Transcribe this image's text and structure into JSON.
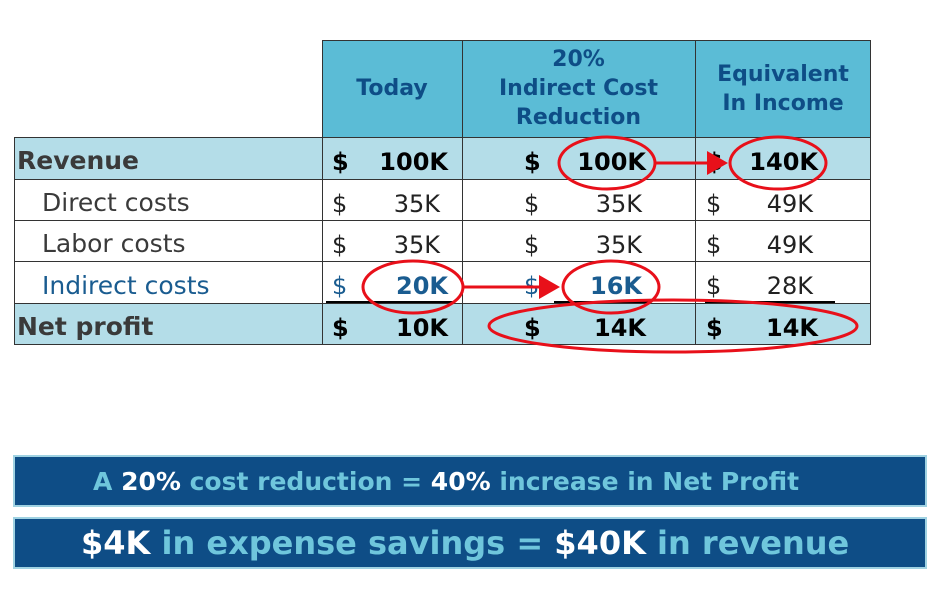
{
  "table": {
    "headers": {
      "today": "Today",
      "reduction": [
        "20%",
        "Indirect Cost",
        "Reduction"
      ],
      "equivalent": [
        "Equivalent",
        "In Income"
      ]
    },
    "rows": [
      {
        "label": "Revenue",
        "today": "100K",
        "reduction": "100K",
        "equivalent": "140K"
      },
      {
        "label": "Direct costs",
        "today": "35K",
        "reduction": "35K",
        "equivalent": "49K"
      },
      {
        "label": "Labor costs",
        "today": "35K",
        "reduction": "35K",
        "equivalent": "49K"
      },
      {
        "label": "Indirect costs",
        "today": "20K",
        "reduction": "16K",
        "equivalent": "28K"
      },
      {
        "label": "Net profit",
        "today": "10K",
        "reduction": "14K",
        "equivalent": "14K"
      }
    ],
    "currency_symbol": "$"
  },
  "banner1": {
    "p1": "A ",
    "p2": "20%",
    "p3": " cost reduction = ",
    "p4": "40%",
    "p5": " increase in Net Profit"
  },
  "banner2": {
    "p1": "$4K",
    "p2": " in expense savings = ",
    "p3": "$40K",
    "p4": " in revenue"
  },
  "colors": {
    "header_bg": "#5bbcd6",
    "band_bg": "#b4dde8",
    "banner_bg": "#0e4d86",
    "annotation_red": "#e8101a"
  }
}
